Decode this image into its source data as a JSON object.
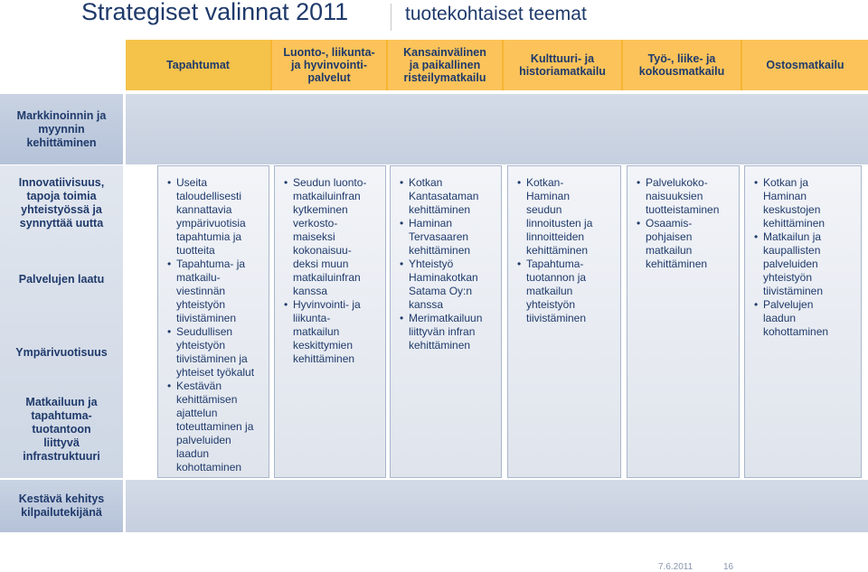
{
  "title": {
    "main": "Strategiset valinnat 2011",
    "sub": "tuotekohtaiset teemat"
  },
  "header": {
    "corner": "Tapahtumat",
    "columns": [
      "Luonto-, liikunta-\nja hyvinvointi-\npalvelut",
      "Kansainvälinen\nja paikallinen\nristeilymatkailu",
      "Kulttuuri- ja\nhistoriamatkailu",
      "Työ-, liike- ja\nkokousmatkailu",
      "Ostosmatkailu"
    ]
  },
  "rows": {
    "top": "Markkinoinnin ja\nmyynnin\nkehittäminen",
    "middle": [
      "Innovatiivisuus,\ntapoja toimia\nyhteistyössä ja\nsynnyttää uutta",
      "Palvelujen laatu",
      "Ympärivuotisuus",
      "Matkailuun ja\ntapahtuma-\ntuotantoon\nliittyvä\ninfrastruktuuri"
    ],
    "bottom": "Kestävä kehitys\nkilpailutekijänä"
  },
  "columns_content": [
    [
      "Useita\ntaloudellisesti\nkannattavia\nympärivuotisia\ntapahtumia ja\ntuotteita",
      "Tapahtuma- ja\nmatkailu-\nviestinnän\nyhteistyön\ntiivistäminen",
      "Seudullisen\nyhteistyön\ntiivistäminen ja\nyhteiset työkalut",
      "Kestävän\nkehittämisen\najattelun\ntoteuttaminen ja\npalveluiden\nlaadun\nkohottaminen"
    ],
    [
      "Seudun luonto-\nmatkailuinfran\nkytkeminen\nverkosto-\nmaiseksi\nkokonaisuu-\ndeksi muun\nmatkailuinfran\nkanssa",
      "Hyvinvointi- ja\nliikunta-\nmatkailun\nkeskittymien\nkehittäminen"
    ],
    [
      "Kotkan\nKantasataman\nkehittäminen",
      "Haminan\nTervasaaren\nkehittäminen",
      "Yhteistyö\nHaminakotkan\nSatama Oy:n\nkanssa",
      "Merimatkailuun\nliittyvän infran\nkehittäminen"
    ],
    [
      "Kotkan-\nHaminan\nseudun\nlinnoitusten ja\nlinnoitteiden\nkehittäminen",
      "Tapahtuma-\ntuotannon ja\nmatkailun\nyhteistyön\ntiivistäminen"
    ],
    [
      "Palvelukoko-\nnaisuuksien\ntuotteistaminen",
      "Osaamis-\npohjaisen\nmatkailun\nkehittäminen"
    ],
    [
      "Kotkan ja\nHaminan\nkeskustojen\nkehittäminen",
      "Matkailun ja\nkaupallisten\npalveluiden\nyhteistyön\ntiivistäminen",
      "Palvelujen\nlaadun\nkohottaminen"
    ]
  ],
  "footer": {
    "date": "7.6.2011",
    "page": "16"
  },
  "colors": {
    "header_orange": "#fbc35a",
    "text_navy": "#1f3a6b",
    "band_blue": "#c9d3e3"
  }
}
